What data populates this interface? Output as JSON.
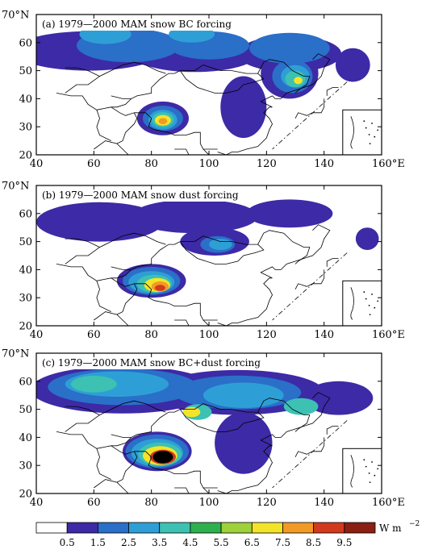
{
  "axes": {
    "lon_ticks": [
      40,
      60,
      80,
      100,
      120,
      140,
      160
    ],
    "lat_ticks": [
      20,
      30,
      40,
      50,
      60,
      70
    ],
    "lon_unit": "°E",
    "lat_unit": "°N"
  },
  "panels": [
    {
      "title": "(a)  1979—2000  MAM  snow  BC  forcing",
      "blobs": [
        {
          "lon": 58,
          "lat": 57,
          "rx": 26,
          "ry": 7.0,
          "level": 0
        },
        {
          "lon": 95,
          "lat": 56,
          "rx": 22,
          "ry": 6.5,
          "level": 0
        },
        {
          "lon": 128,
          "lat": 56,
          "rx": 18,
          "ry": 6.5,
          "level": 0
        },
        {
          "lon": 150,
          "lat": 52,
          "rx": 6,
          "ry": 6,
          "level": 0
        },
        {
          "lon": 128,
          "lat": 49,
          "rx": 10,
          "ry": 9,
          "level": 0
        },
        {
          "lon": 112,
          "lat": 37,
          "rx": 8,
          "ry": 11,
          "level": 0
        },
        {
          "lon": 84,
          "lat": 33,
          "rx": 9,
          "ry": 6,
          "level": 0
        },
        {
          "lon": 72,
          "lat": 59,
          "rx": 18,
          "ry": 6,
          "level": 1
        },
        {
          "lon": 100,
          "lat": 59,
          "rx": 14,
          "ry": 5,
          "level": 1
        },
        {
          "lon": 128,
          "lat": 58,
          "rx": 14,
          "ry": 5.5,
          "level": 1
        },
        {
          "lon": 129,
          "lat": 48,
          "rx": 7,
          "ry": 6,
          "level": 1
        },
        {
          "lon": 84,
          "lat": 33,
          "rx": 7,
          "ry": 4.5,
          "level": 1
        },
        {
          "lon": 64,
          "lat": 63,
          "rx": 9,
          "ry": 3.5,
          "level": 2
        },
        {
          "lon": 94,
          "lat": 63,
          "rx": 8,
          "ry": 3,
          "level": 2
        },
        {
          "lon": 130,
          "lat": 48,
          "rx": 5,
          "ry": 4,
          "level": 2
        },
        {
          "lon": 84,
          "lat": 32.5,
          "rx": 5,
          "ry": 3.5,
          "level": 2
        },
        {
          "lon": 130,
          "lat": 47,
          "rx": 3.5,
          "ry": 3,
          "level": 3
        },
        {
          "lon": 84,
          "lat": 32.5,
          "rx": 3.8,
          "ry": 2.7,
          "level": 3
        },
        {
          "lon": 131,
          "lat": 46.5,
          "rx": 1.5,
          "ry": 1.3,
          "level": 6
        },
        {
          "lon": 84,
          "lat": 32.3,
          "rx": 2.8,
          "ry": 1.9,
          "level": 6
        },
        {
          "lon": 84,
          "lat": 32,
          "rx": 1.5,
          "ry": 1.1,
          "level": 7
        }
      ]
    },
    {
      "title": "(b)  1979—2000  MAM  snow  dust  forcing",
      "blobs": [
        {
          "lon": 62,
          "lat": 57,
          "rx": 22,
          "ry": 7,
          "level": 0
        },
        {
          "lon": 95,
          "lat": 59,
          "rx": 22,
          "ry": 6,
          "level": 0
        },
        {
          "lon": 128,
          "lat": 60,
          "rx": 15,
          "ry": 5,
          "level": 0
        },
        {
          "lon": 102,
          "lat": 50,
          "rx": 12,
          "ry": 5,
          "level": 0
        },
        {
          "lon": 80,
          "lat": 36,
          "rx": 12,
          "ry": 6,
          "level": 0
        },
        {
          "lon": 155,
          "lat": 51,
          "rx": 4,
          "ry": 4,
          "level": 0
        },
        {
          "lon": 103,
          "lat": 49,
          "rx": 6,
          "ry": 3,
          "level": 1
        },
        {
          "lon": 80,
          "lat": 36,
          "rx": 10,
          "ry": 5,
          "level": 1
        },
        {
          "lon": 104,
          "lat": 49,
          "rx": 4,
          "ry": 2,
          "level": 2
        },
        {
          "lon": 80,
          "lat": 35.5,
          "rx": 8,
          "ry": 4,
          "level": 2
        },
        {
          "lon": 81,
          "lat": 35,
          "rx": 6,
          "ry": 3.2,
          "level": 3
        },
        {
          "lon": 82,
          "lat": 34.5,
          "rx": 4.5,
          "ry": 2.5,
          "level": 6
        },
        {
          "lon": 83,
          "lat": 34,
          "rx": 3,
          "ry": 1.8,
          "level": 7
        },
        {
          "lon": 83,
          "lat": 33.5,
          "rx": 1.8,
          "ry": 1.1,
          "level": 8
        }
      ]
    },
    {
      "title": "(c)  1979—2000  MAM  snow  BC+dust  forcing",
      "blobs": [
        {
          "lon": 70,
          "lat": 57,
          "rx": 32,
          "ry": 8.5,
          "level": 0
        },
        {
          "lon": 110,
          "lat": 56,
          "rx": 30,
          "ry": 8,
          "level": 0
        },
        {
          "lon": 145,
          "lat": 54,
          "rx": 12,
          "ry": 6,
          "level": 0
        },
        {
          "lon": 82,
          "lat": 35,
          "rx": 12,
          "ry": 7,
          "level": 0
        },
        {
          "lon": 112,
          "lat": 38,
          "rx": 10,
          "ry": 11,
          "level": 0
        },
        {
          "lon": 70,
          "lat": 58,
          "rx": 26,
          "ry": 6.5,
          "level": 1
        },
        {
          "lon": 110,
          "lat": 56,
          "rx": 22,
          "ry": 6,
          "level": 1
        },
        {
          "lon": 82,
          "lat": 35,
          "rx": 11,
          "ry": 6,
          "level": 1
        },
        {
          "lon": 68,
          "lat": 59,
          "rx": 18,
          "ry": 4.5,
          "level": 2
        },
        {
          "lon": 112,
          "lat": 55,
          "rx": 14,
          "ry": 4.5,
          "level": 2
        },
        {
          "lon": 82,
          "lat": 34.5,
          "rx": 9,
          "ry": 5,
          "level": 2
        },
        {
          "lon": 60,
          "lat": 59,
          "rx": 8,
          "ry": 3,
          "level": 3
        },
        {
          "lon": 96,
          "lat": 49,
          "rx": 5,
          "ry": 2.8,
          "level": 3
        },
        {
          "lon": 132,
          "lat": 51,
          "rx": 6,
          "ry": 3,
          "level": 3
        },
        {
          "lon": 83,
          "lat": 34,
          "rx": 7.5,
          "ry": 4.2,
          "level": 3
        },
        {
          "lon": 94,
          "lat": 49,
          "rx": 3,
          "ry": 1.8,
          "level": 6
        },
        {
          "lon": 83,
          "lat": 33.5,
          "rx": 6,
          "ry": 3.4,
          "level": 6
        },
        {
          "lon": 84,
          "lat": 33,
          "rx": 4.5,
          "ry": 2.6,
          "level": 8
        },
        {
          "lon": 84,
          "lat": 33,
          "rx": 3.5,
          "ry": 2.2,
          "level": 10
        }
      ]
    }
  ],
  "colorbar": {
    "levels": [
      "0.5",
      "1.5",
      "2.5",
      "3.5",
      "4.5",
      "5.5",
      "6.5",
      "7.5",
      "8.5",
      "9.5"
    ],
    "colors": [
      "#ffffff",
      "#3d2aa6",
      "#2a6fc8",
      "#2e9fd6",
      "#3cc1b2",
      "#2fb04e",
      "#9fd13a",
      "#f3e42a",
      "#f29a26",
      "#d23a1e",
      "#8a1f12"
    ],
    "unit_main": "W m",
    "unit_exp": "−2"
  }
}
